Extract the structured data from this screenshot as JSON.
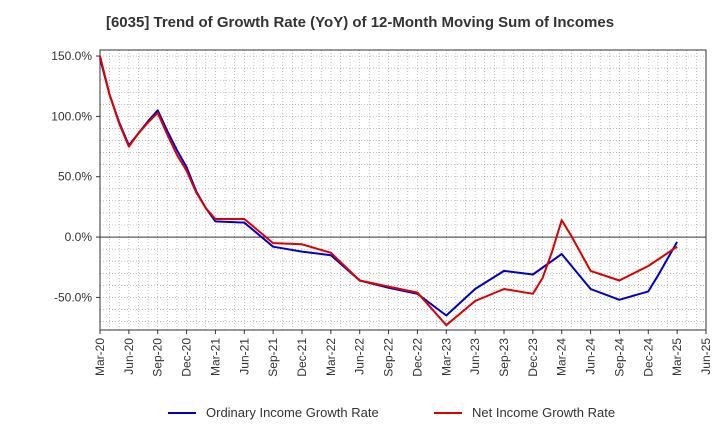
{
  "chart_data": {
    "type": "line",
    "title": "[6035]  Trend of Growth Rate (YoY) of 12-Month Moving Sum of Incomes",
    "xlabel": "",
    "ylabel": "",
    "x_tick_labels": [
      "Mar-20",
      "Jun-20",
      "Sep-20",
      "Dec-20",
      "Mar-21",
      "Jun-21",
      "Sep-21",
      "Dec-21",
      "Mar-22",
      "Jun-22",
      "Sep-22",
      "Dec-22",
      "Mar-23",
      "Jun-23",
      "Sep-23",
      "Dec-23",
      "Mar-24",
      "Jun-24",
      "Sep-24",
      "Dec-24",
      "Mar-25",
      "Jun-25"
    ],
    "y_ticks": [
      150,
      100,
      50,
      0,
      -50
    ],
    "y_tick_labels": [
      "150.0%",
      "100.0%",
      "50.0%",
      "0.0%",
      "-50.0%"
    ],
    "ylim": [
      -77,
      155
    ],
    "xlim": [
      "Mar-20",
      "Jun-25"
    ],
    "grid": true,
    "legend_position": "bottom",
    "series": [
      {
        "name": "Ordinary Income Growth Rate",
        "color": "#0000cc",
        "x": [
          "Mar-20",
          "Apr-20",
          "May-20",
          "Jun-20",
          "Jul-20",
          "Aug-20",
          "Sep-20",
          "Oct-20",
          "Nov-20",
          "Dec-20",
          "Jan-21",
          "Feb-21",
          "Mar-21",
          "Jun-21",
          "Sep-21",
          "Dec-21",
          "Mar-22",
          "Jun-22",
          "Sep-22",
          "Dec-22",
          "Mar-23",
          "Jun-23",
          "Sep-23",
          "Dec-23",
          "Mar-24",
          "Jun-24",
          "Sep-24",
          "Dec-24",
          "Jan-25",
          "Feb-25",
          "Mar-25"
        ],
        "values": [
          148,
          118,
          95,
          76,
          86,
          96,
          105,
          88,
          72,
          58,
          38,
          24,
          13,
          12,
          -8,
          -12,
          -15,
          -36,
          -42,
          -47,
          -65,
          -43,
          -28,
          -31,
          -14,
          -43,
          -52,
          -45,
          -32,
          -18,
          -4
        ]
      },
      {
        "name": "Net Income Growth Rate",
        "color": "#dd0000",
        "x": [
          "Mar-20",
          "Apr-20",
          "May-20",
          "Jun-20",
          "Jul-20",
          "Aug-20",
          "Sep-20",
          "Oct-20",
          "Nov-20",
          "Dec-20",
          "Jan-21",
          "Feb-21",
          "Mar-21",
          "Jun-21",
          "Sep-21",
          "Dec-21",
          "Mar-22",
          "Jun-22",
          "Sep-22",
          "Dec-22",
          "Mar-23",
          "Jun-23",
          "Sep-23",
          "Dec-23",
          "Jan-24",
          "Feb-24",
          "Mar-24",
          "Apr-24",
          "Jun-24",
          "Sep-24",
          "Dec-24",
          "Mar-25"
        ],
        "values": [
          150,
          118,
          94,
          75,
          86,
          95,
          103,
          85,
          68,
          55,
          37,
          24,
          15,
          15,
          -5,
          -6,
          -13,
          -36,
          -41,
          -46,
          -73,
          -53,
          -43,
          -47,
          -34,
          -12,
          14,
          1,
          -28,
          -36,
          -24,
          -8
        ]
      }
    ]
  }
}
